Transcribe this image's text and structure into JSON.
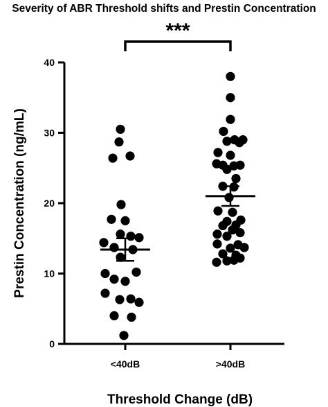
{
  "chart_data": {
    "type": "scatter",
    "title": "Severity of ABR Threshold shifts and Prestin Concentration",
    "xlabel": "Threshold Change (dB)",
    "ylabel": "Prestin Concentration (ng/mL)",
    "ylim": [
      0,
      40
    ],
    "yticks": [
      0,
      10,
      20,
      30,
      40
    ],
    "grid": false,
    "categories": [
      "<40dB",
      ">40dB"
    ],
    "significance": {
      "label": "***",
      "between": [
        "<40dB",
        ">40dB"
      ]
    },
    "color": "#000000",
    "series": [
      {
        "category": "<40dB",
        "mean": 13.4,
        "error": 1.6,
        "points": [
          {
            "offset": -0.35,
            "y": 30.5
          },
          {
            "offset": -0.45,
            "y": 28.7
          },
          {
            "offset": -0.9,
            "y": 26.4
          },
          {
            "offset": 0.35,
            "y": 26.7
          },
          {
            "offset": -0.3,
            "y": 19.8
          },
          {
            "offset": -1.0,
            "y": 17.7
          },
          {
            "offset": 0.0,
            "y": 17.5
          },
          {
            "offset": -0.35,
            "y": 15.6
          },
          {
            "offset": 0.4,
            "y": 15.3
          },
          {
            "offset": 1.0,
            "y": 15.1
          },
          {
            "offset": -1.55,
            "y": 14.4
          },
          {
            "offset": -0.8,
            "y": 13.7
          },
          {
            "offset": 0.55,
            "y": 13.4
          },
          {
            "offset": -0.35,
            "y": 12.3
          },
          {
            "offset": -1.45,
            "y": 10.0
          },
          {
            "offset": 0.8,
            "y": 10.2
          },
          {
            "offset": -0.8,
            "y": 9.2
          },
          {
            "offset": 0.0,
            "y": 8.9
          },
          {
            "offset": -1.45,
            "y": 7.2
          },
          {
            "offset": -0.4,
            "y": 6.3
          },
          {
            "offset": 0.4,
            "y": 6.4
          },
          {
            "offset": 1.0,
            "y": 5.9
          },
          {
            "offset": -0.8,
            "y": 4.0
          },
          {
            "offset": 0.45,
            "y": 3.8
          },
          {
            "offset": -0.1,
            "y": 1.2
          }
        ]
      },
      {
        "category": ">40dB",
        "mean": 21.0,
        "error": 1.4,
        "points": [
          {
            "offset": 0.0,
            "y": 38.0
          },
          {
            "offset": 0.0,
            "y": 35.0
          },
          {
            "offset": 0.0,
            "y": 31.9
          },
          {
            "offset": -0.5,
            "y": 30.2
          },
          {
            "offset": 0.3,
            "y": 29.0
          },
          {
            "offset": 0.9,
            "y": 29.0
          },
          {
            "offset": -0.25,
            "y": 28.8
          },
          {
            "offset": 0.65,
            "y": 28.6
          },
          {
            "offset": -0.9,
            "y": 27.2
          },
          {
            "offset": 0.0,
            "y": 26.8
          },
          {
            "offset": -1.0,
            "y": 25.6
          },
          {
            "offset": -0.55,
            "y": 25.4
          },
          {
            "offset": 0.25,
            "y": 25.3
          },
          {
            "offset": 0.7,
            "y": 25.4
          },
          {
            "offset": -0.25,
            "y": 24.8
          },
          {
            "offset": 0.4,
            "y": 23.5
          },
          {
            "offset": -0.55,
            "y": 22.4
          },
          {
            "offset": 0.25,
            "y": 22.3
          },
          {
            "offset": -0.1,
            "y": 20.8
          },
          {
            "offset": -0.9,
            "y": 18.9
          },
          {
            "offset": 0.15,
            "y": 18.7
          },
          {
            "offset": -0.25,
            "y": 17.4
          },
          {
            "offset": 0.75,
            "y": 17.6
          },
          {
            "offset": -0.55,
            "y": 16.8
          },
          {
            "offset": 0.4,
            "y": 16.9
          },
          {
            "offset": -0.95,
            "y": 15.6
          },
          {
            "offset": 0.15,
            "y": 16.2
          },
          {
            "offset": 0.7,
            "y": 15.8
          },
          {
            "offset": -0.25,
            "y": 15.3
          },
          {
            "offset": -0.95,
            "y": 14.2
          },
          {
            "offset": 0.0,
            "y": 13.6
          },
          {
            "offset": 0.55,
            "y": 14.1
          },
          {
            "offset": 1.0,
            "y": 13.7
          },
          {
            "offset": -0.55,
            "y": 12.8
          },
          {
            "offset": 0.4,
            "y": 12.6
          },
          {
            "offset": -1.0,
            "y": 11.6
          },
          {
            "offset": -0.25,
            "y": 11.8
          },
          {
            "offset": 0.25,
            "y": 11.9
          },
          {
            "offset": 0.7,
            "y": 12.2
          }
        ]
      }
    ]
  }
}
